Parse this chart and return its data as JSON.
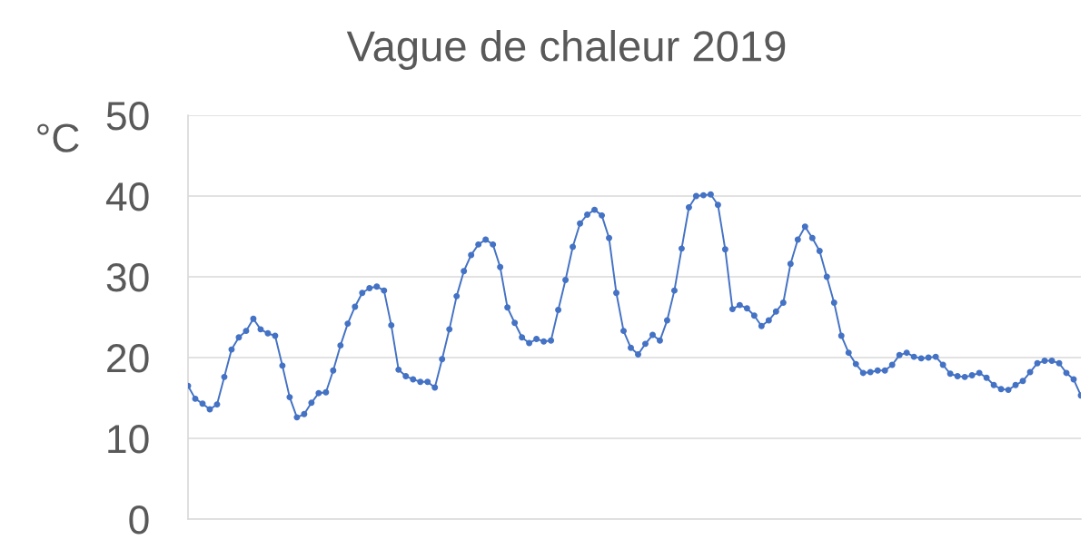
{
  "chart_data": {
    "type": "line",
    "title": "Vague de chaleur 2019",
    "ylabel": "°C",
    "categories": [
      null,
      null,
      null,
      null,
      null,
      null,
      null,
      null,
      null,
      null,
      null,
      null,
      null,
      null,
      null,
      null,
      null,
      null,
      null,
      null,
      null,
      null,
      null,
      null,
      null,
      null,
      null,
      null,
      null,
      null,
      null,
      null,
      null,
      null,
      null,
      null,
      null,
      null,
      null,
      null,
      null,
      null,
      null,
      null,
      null,
      null,
      null,
      null,
      null,
      null,
      null,
      null,
      null,
      null,
      null,
      null,
      null,
      null,
      null,
      null,
      null,
      null,
      null,
      null,
      null,
      null,
      null,
      null,
      null,
      null,
      null,
      null,
      null,
      null,
      null,
      null,
      null,
      null,
      null,
      null,
      null,
      null,
      null,
      null,
      null,
      null,
      null,
      null,
      null,
      null,
      null,
      null,
      null,
      null,
      null,
      null,
      null,
      null,
      null,
      null,
      null,
      null,
      null,
      null,
      null,
      null,
      null,
      null,
      null,
      null,
      null,
      null,
      null,
      null,
      null,
      null,
      null,
      null,
      null,
      null,
      null,
      null,
      null,
      null
    ],
    "values": [
      16.5,
      14.9,
      14.3,
      13.6,
      14.2,
      17.6,
      21.0,
      22.5,
      23.3,
      24.8,
      23.5,
      23.0,
      22.7,
      19.0,
      15.1,
      12.6,
      13.0,
      14.4,
      15.6,
      15.7,
      18.4,
      21.5,
      24.2,
      26.3,
      28.0,
      28.6,
      28.8,
      28.3,
      24.0,
      18.5,
      17.7,
      17.3,
      17.0,
      17.0,
      16.3,
      19.8,
      23.5,
      27.6,
      30.7,
      32.7,
      34.0,
      34.6,
      34.0,
      31.2,
      26.2,
      24.3,
      22.5,
      21.8,
      22.3,
      22.0,
      22.1,
      25.9,
      29.6,
      33.7,
      36.6,
      37.7,
      38.3,
      37.6,
      34.8,
      28.0,
      23.3,
      21.2,
      20.4,
      21.7,
      22.8,
      22.1,
      24.6,
      28.3,
      33.5,
      38.6,
      40.0,
      40.1,
      40.2,
      38.9,
      33.4,
      26.0,
      26.5,
      26.1,
      25.2,
      23.9,
      24.6,
      25.7,
      26.8,
      31.6,
      34.6,
      36.2,
      34.8,
      33.2,
      30.0,
      26.8,
      22.7,
      20.6,
      19.2,
      18.1,
      18.2,
      18.4,
      18.4,
      19.1,
      20.3,
      20.6,
      20.1,
      19.9,
      20.0,
      20.1,
      19.1,
      18.0,
      17.7,
      17.6,
      17.8,
      18.1,
      17.5,
      16.6,
      16.1,
      16.0,
      16.6,
      17.1,
      18.2,
      19.3,
      19.6,
      19.6,
      19.3,
      18.1,
      17.3,
      15.3
    ],
    "color": "#4472c4",
    "marker": "circle",
    "line_style": "solid",
    "ylim": [
      0,
      50
    ],
    "yticks": [
      0,
      10,
      20,
      30,
      40,
      50
    ],
    "grid": "y"
  }
}
